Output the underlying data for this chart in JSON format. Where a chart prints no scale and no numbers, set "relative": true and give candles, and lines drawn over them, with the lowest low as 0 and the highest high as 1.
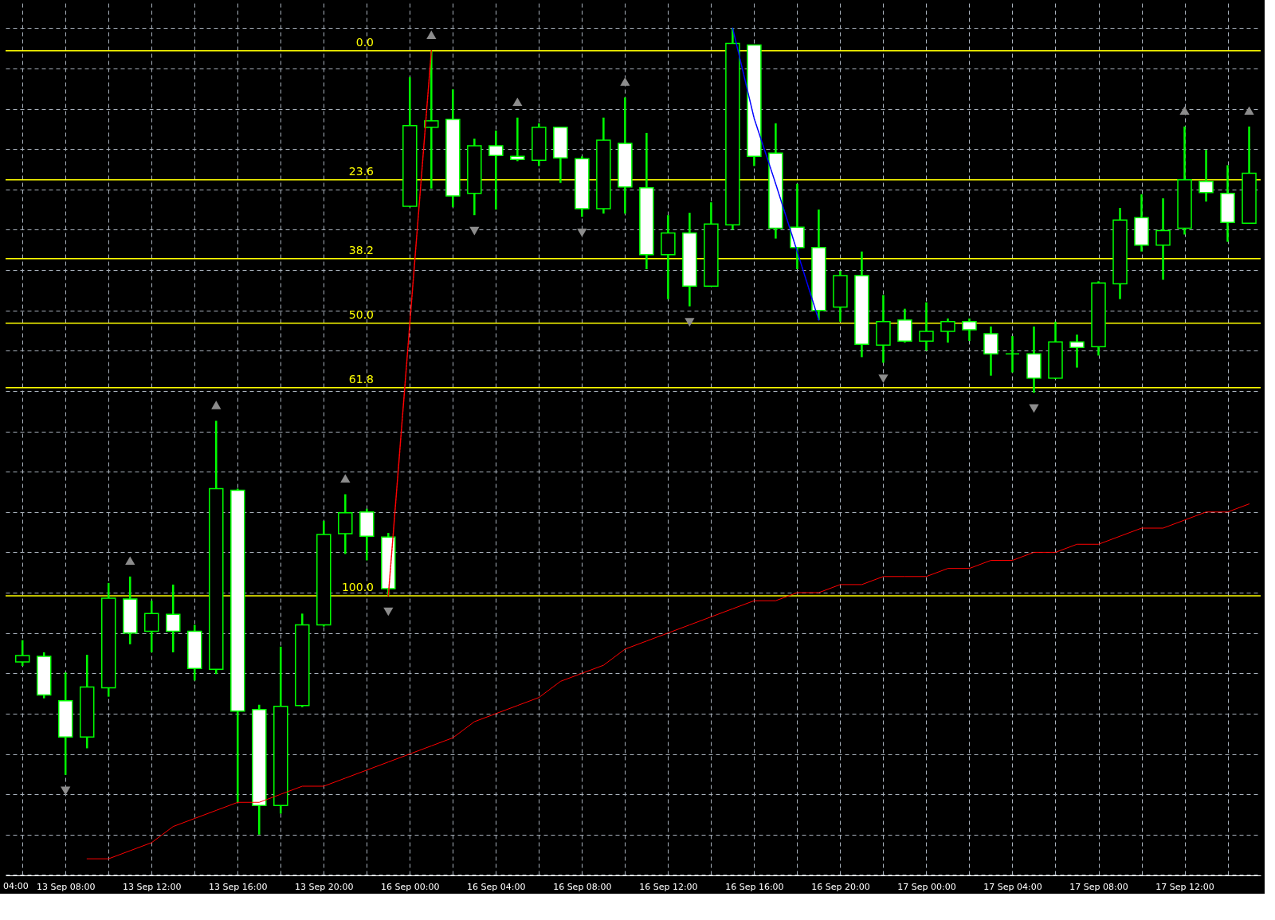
{
  "chart_data": {
    "type": "candlestick",
    "relative": true,
    "color": "#00ff00",
    "grid": true,
    "categories": [
      null,
      null,
      "13 Sep 08:00",
      null,
      null,
      null,
      "13 Sep 12:00",
      null,
      null,
      null,
      "13 Sep 16:00",
      null,
      null,
      null,
      "13 Sep 20:00",
      null,
      null,
      null,
      "16 Sep 00:00",
      null,
      null,
      null,
      "16 Sep 04:00",
      null,
      null,
      null,
      "16 Sep 08:00",
      null,
      null,
      null,
      "16 Sep 12:00",
      null,
      null,
      null,
      "16 Sep 16:00",
      null,
      null,
      null,
      "16 Sep 20:00",
      null,
      null,
      null,
      "17 Sep 00:00",
      null,
      null,
      null,
      "17 Sep 04:00",
      null,
      null,
      null,
      "17 Sep 08:00",
      null,
      null,
      null,
      "17 Sep 12:00",
      null,
      null,
      null
    ],
    "ohlc": [
      [
        0.214,
        0.241,
        0.209,
        0.222
      ],
      [
        0.221,
        0.226,
        0.169,
        0.173
      ],
      [
        0.166,
        0.201,
        0.074,
        0.121
      ],
      [
        0.121,
        0.223,
        0.107,
        0.183
      ],
      [
        0.182,
        0.312,
        0.171,
        0.293
      ],
      [
        0.292,
        0.32,
        0.236,
        0.25
      ],
      [
        0.252,
        0.29,
        0.226,
        0.274
      ],
      [
        0.273,
        0.31,
        0.226,
        0.252
      ],
      [
        0.252,
        0.26,
        0.191,
        0.206
      ],
      [
        0.205,
        0.513,
        0.199,
        0.429
      ],
      [
        0.427,
        0.429,
        0.04,
        0.153
      ],
      [
        0.155,
        0.161,
        0.0,
        0.036
      ],
      [
        0.036,
        0.233,
        0.026,
        0.159
      ],
      [
        0.16,
        0.274,
        0.158,
        0.26
      ],
      [
        0.26,
        0.389,
        0.258,
        0.372
      ],
      [
        0.373,
        0.422,
        0.348,
        0.399
      ],
      [
        0.4,
        0.404,
        0.34,
        0.37
      ],
      [
        0.369,
        0.374,
        0.296,
        0.305
      ],
      [
        0.779,
        0.939,
        0.778,
        0.879
      ],
      [
        0.877,
        0.972,
        0.801,
        0.885
      ],
      [
        0.887,
        0.924,
        0.778,
        0.792
      ],
      [
        0.795,
        0.863,
        0.768,
        0.854
      ],
      [
        0.854,
        0.873,
        0.775,
        0.842
      ],
      [
        0.841,
        0.889,
        0.835,
        0.837
      ],
      [
        0.836,
        0.882,
        0.829,
        0.877
      ],
      [
        0.877,
        0.877,
        0.808,
        0.839
      ],
      [
        0.838,
        0.841,
        0.766,
        0.776
      ],
      [
        0.776,
        0.889,
        0.77,
        0.861
      ],
      [
        0.857,
        0.914,
        0.77,
        0.803
      ],
      [
        0.802,
        0.87,
        0.701,
        0.719
      ],
      [
        0.719,
        0.768,
        0.664,
        0.746
      ],
      [
        0.746,
        0.771,
        0.655,
        0.68
      ],
      [
        0.68,
        0.784,
        0.68,
        0.757
      ],
      [
        0.756,
        1.0,
        0.75,
        0.981
      ],
      [
        0.979,
        0.979,
        0.829,
        0.841
      ],
      [
        0.845,
        0.882,
        0.739,
        0.752
      ],
      [
        0.753,
        0.807,
        0.701,
        0.728
      ],
      [
        0.728,
        0.775,
        0.638,
        0.65
      ],
      [
        0.654,
        0.699,
        0.636,
        0.693
      ],
      [
        0.693,
        0.723,
        0.592,
        0.608
      ],
      [
        0.607,
        0.669,
        0.585,
        0.636
      ],
      [
        0.638,
        0.652,
        0.61,
        0.612
      ],
      [
        0.612,
        0.66,
        0.6,
        0.624
      ],
      [
        0.624,
        0.64,
        0.61,
        0.636
      ],
      [
        0.636,
        0.64,
        0.612,
        0.626
      ],
      [
        0.621,
        0.63,
        0.569,
        0.596
      ],
      [
        0.596,
        0.618,
        0.573,
        0.596
      ],
      [
        0.596,
        0.63,
        0.548,
        0.566
      ],
      [
        0.566,
        0.636,
        0.565,
        0.611
      ],
      [
        0.611,
        0.62,
        0.579,
        0.604
      ],
      [
        0.605,
        0.686,
        0.594,
        0.684
      ],
      [
        0.683,
        0.777,
        0.664,
        0.762
      ],
      [
        0.765,
        0.794,
        0.723,
        0.731
      ],
      [
        0.731,
        0.789,
        0.688,
        0.749
      ],
      [
        0.752,
        0.878,
        0.744,
        0.812
      ],
      [
        0.81,
        0.849,
        0.785,
        0.796
      ],
      [
        0.795,
        0.83,
        0.735,
        0.759
      ],
      [
        0.758,
        0.878,
        0.758,
        0.82
      ]
    ],
    "series": [
      {
        "type": "line",
        "color": "#ff0000",
        "values": [
          null,
          null,
          null,
          -0.03,
          -0.03,
          -0.02,
          -0.01,
          0.01,
          0.02,
          0.03,
          0.04,
          0.04,
          0.05,
          0.06,
          0.06,
          0.07,
          0.08,
          0.09,
          0.1,
          0.11,
          0.12,
          0.14,
          0.15,
          0.16,
          0.17,
          0.19,
          0.2,
          0.21,
          0.23,
          0.24,
          0.25,
          0.26,
          0.27,
          0.28,
          0.29,
          0.29,
          0.3,
          0.3,
          0.31,
          0.31,
          0.32,
          0.32,
          0.32,
          0.33,
          0.33,
          0.34,
          0.34,
          0.35,
          0.35,
          0.36,
          0.36,
          0.37,
          0.38,
          0.38,
          0.39,
          0.4,
          0.4,
          0.41
        ]
      },
      {
        "type": "line",
        "color": "#ff0000",
        "line_style": "dotted",
        "values": [
          null,
          null,
          null,
          null,
          null,
          null,
          null,
          null,
          null,
          null,
          null,
          null,
          null,
          null,
          null,
          null,
          null,
          0.296,
          0.634,
          0.972,
          null,
          null,
          null,
          null,
          null,
          null,
          null,
          null,
          null,
          null,
          null,
          null,
          null,
          null,
          null,
          null,
          null,
          null,
          null,
          null,
          null,
          null,
          null,
          null,
          null,
          null,
          null,
          null,
          null,
          null,
          null,
          null,
          null,
          null,
          null,
          null,
          null,
          null
        ]
      },
      {
        "type": "line",
        "color": "#0000ff",
        "line_style": "dotted",
        "values": [
          null,
          null,
          null,
          null,
          null,
          null,
          null,
          null,
          null,
          null,
          null,
          null,
          null,
          null,
          null,
          null,
          null,
          null,
          null,
          null,
          null,
          null,
          null,
          null,
          null,
          null,
          null,
          null,
          null,
          null,
          null,
          null,
          null,
          1.0,
          0.888,
          0.807,
          0.723,
          0.638,
          null,
          null,
          null,
          null,
          null,
          null,
          null,
          null,
          null,
          null,
          null,
          null,
          null,
          null,
          null,
          null,
          null,
          null,
          null,
          null
        ]
      },
      {
        "type": "scatter",
        "color": "#8c8c8c",
        "marker": "triangle",
        "values": [
          null,
          null,
          null,
          null,
          null,
          0.338,
          null,
          null,
          null,
          0.531,
          null,
          null,
          null,
          null,
          null,
          0.44,
          null,
          null,
          null,
          0.99,
          null,
          null,
          null,
          0.907,
          null,
          null,
          null,
          null,
          0.932,
          null,
          null,
          null,
          null,
          null,
          null,
          null,
          null,
          null,
          null,
          null,
          null,
          null,
          null,
          null,
          null,
          null,
          null,
          null,
          null,
          null,
          null,
          null,
          null,
          null,
          0.896,
          null,
          null,
          0.896
        ]
      },
      {
        "type": "scatter",
        "color": "#8c8c8c",
        "marker": "triangle",
        "values": [
          null,
          null,
          0.056,
          null,
          null,
          null,
          null,
          null,
          null,
          null,
          null,
          null,
          null,
          null,
          null,
          null,
          null,
          0.278,
          null,
          null,
          null,
          0.75,
          null,
          null,
          null,
          null,
          0.748,
          null,
          null,
          null,
          null,
          0.637,
          null,
          null,
          null,
          null,
          null,
          null,
          null,
          null,
          0.567,
          null,
          null,
          null,
          null,
          null,
          null,
          0.53,
          null,
          null,
          null,
          null,
          null,
          null,
          null,
          null,
          null,
          null
        ]
      }
    ],
    "ref_lines": [
      {
        "axis": "y",
        "value": 0.972,
        "color": "#ffff00"
      },
      {
        "axis": "y",
        "value": 0.812,
        "color": "#ffff00"
      },
      {
        "axis": "y",
        "value": 0.714,
        "color": "#ffff00"
      },
      {
        "axis": "y",
        "value": 0.634,
        "color": "#ffff00"
      },
      {
        "axis": "y",
        "value": 0.554,
        "color": "#ffff00"
      },
      {
        "axis": "y",
        "value": 0.296,
        "color": "#ffff00"
      }
    ],
    "annotations": [
      "04:00",
      {
        "text": "0.0",
        "y": 0.972
      },
      {
        "text": "23.6",
        "y": 0.812
      },
      {
        "text": "38.2",
        "y": 0.714
      },
      {
        "text": "50.0",
        "y": 0.634
      },
      {
        "text": "61.8",
        "y": 0.554
      },
      {
        "text": "100.0",
        "y": 0.296
      }
    ]
  }
}
